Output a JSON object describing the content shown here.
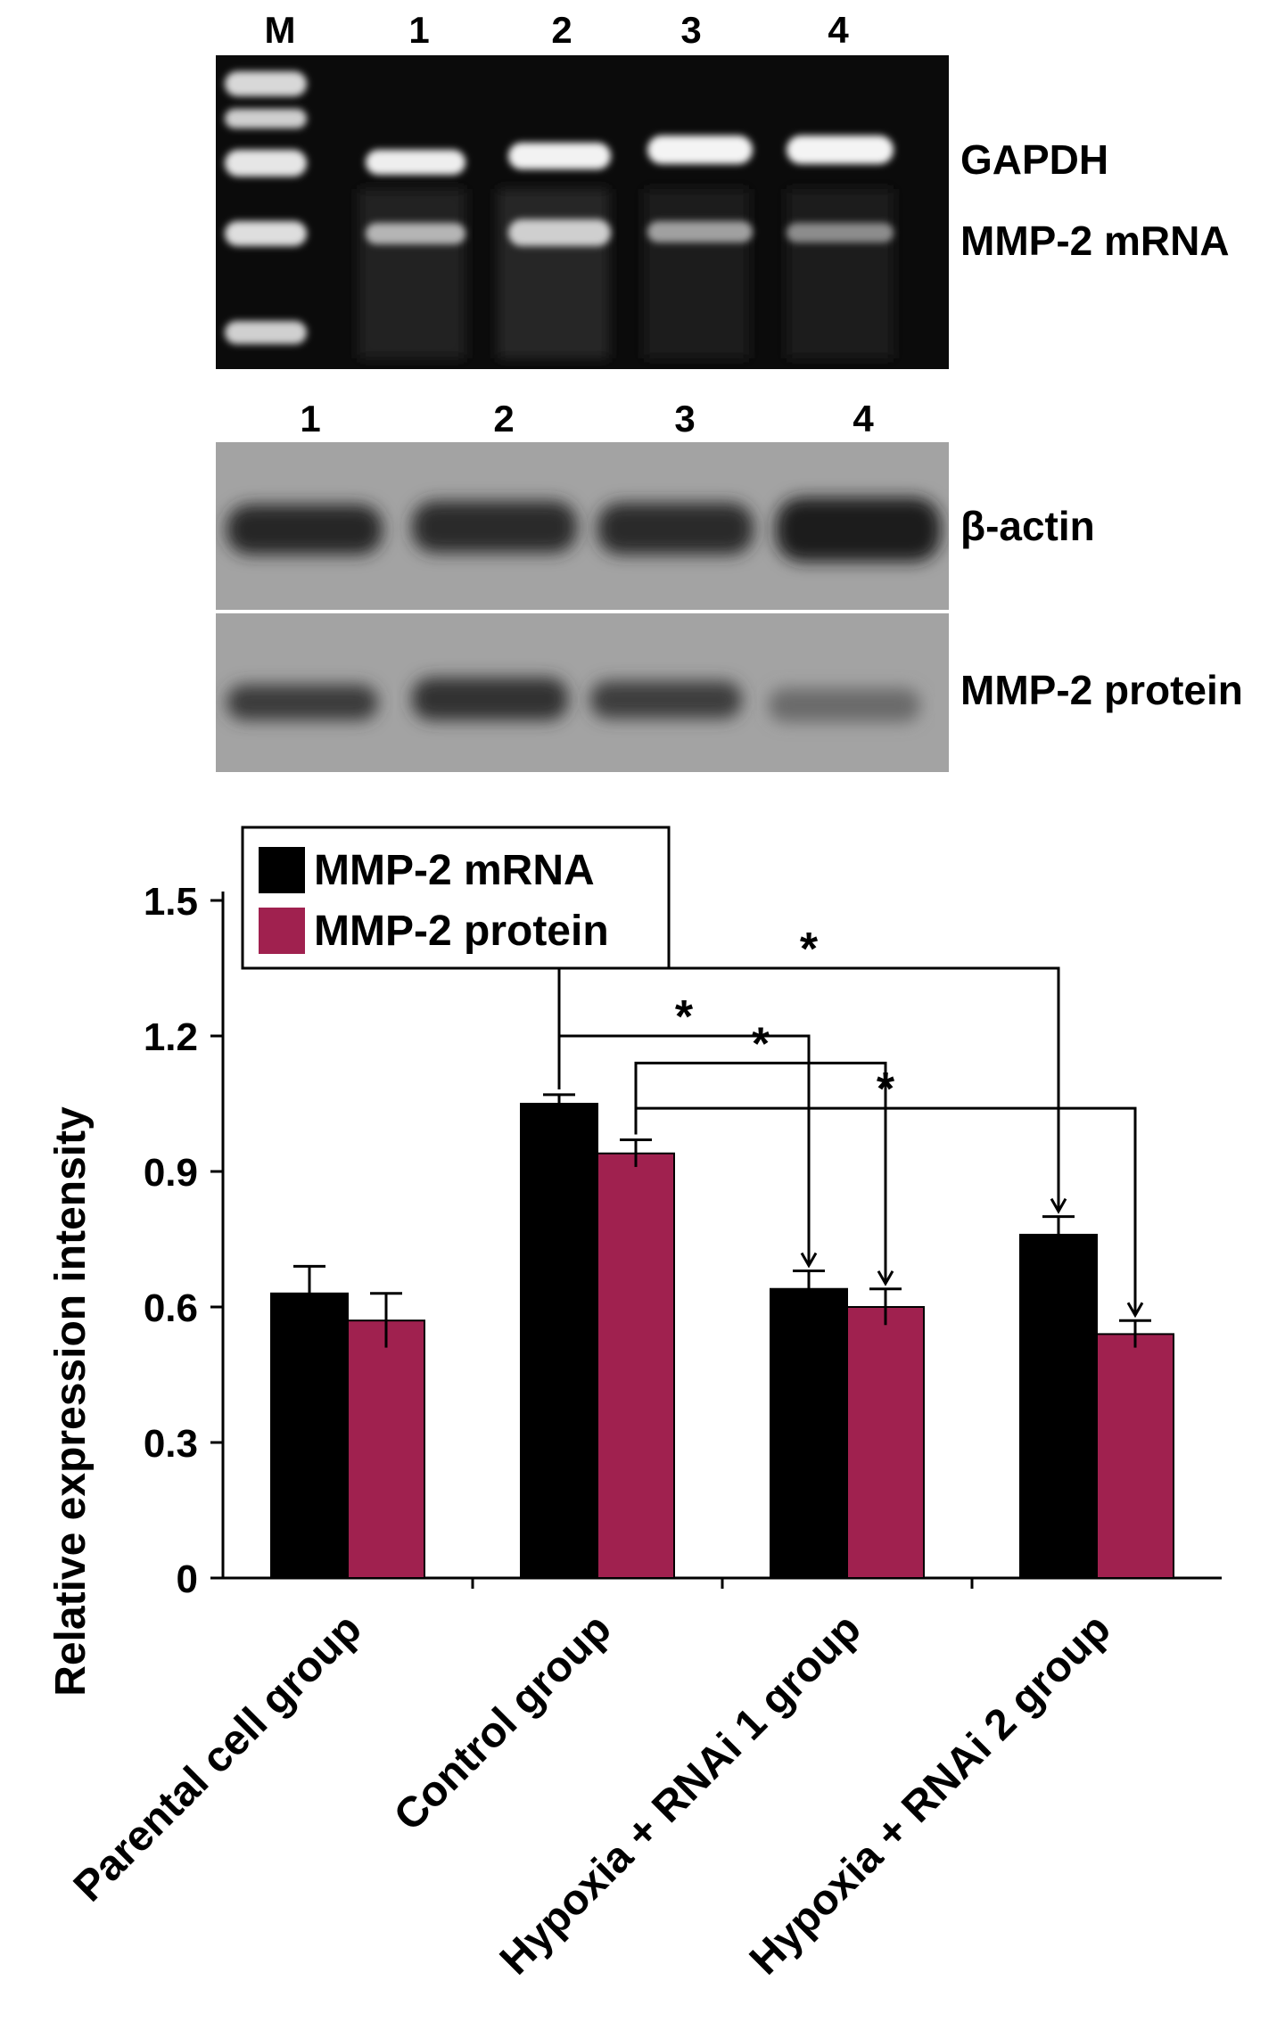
{
  "gel": {
    "lane_labels": [
      "M",
      "1",
      "2",
      "3",
      "4"
    ],
    "band_labels": [
      "GAPDH",
      "MMP-2 mRNA"
    ]
  },
  "blot": {
    "lane_labels": [
      "1",
      "2",
      "3",
      "4"
    ],
    "panel_labels": [
      "β-actin",
      "MMP-2 protein"
    ]
  },
  "colors": {
    "mrna": "#000000",
    "protein": "#a0214f"
  },
  "chart_data": {
    "type": "bar",
    "categories": [
      "Parental cell group",
      "Control group",
      "Hypoxia + RNAi 1 group",
      "Hypoxia + RNAi 2 group"
    ],
    "series": [
      {
        "name": "MMP-2 mRNA",
        "values": [
          0.63,
          1.05,
          0.64,
          0.76
        ],
        "errors": [
          0.06,
          0.02,
          0.04,
          0.04
        ],
        "color": "#000000"
      },
      {
        "name": "MMP-2 protein",
        "values": [
          0.57,
          0.94,
          0.6,
          0.54
        ],
        "errors": [
          0.06,
          0.03,
          0.04,
          0.03
        ],
        "color": "#a0214f"
      }
    ],
    "ylabel": "Relative expression intensity",
    "ylim": [
      0,
      1.5
    ],
    "yticks": [
      "0",
      "0.3",
      "0.6",
      "0.9",
      "1.2",
      "1.5"
    ],
    "legend_position": "top-left",
    "significance": [
      {
        "from_category": 1,
        "from_series": 0,
        "to_category": 2,
        "to_series": 0,
        "label": "*"
      },
      {
        "from_category": 1,
        "from_series": 0,
        "to_category": 3,
        "to_series": 0,
        "label": "*"
      },
      {
        "from_category": 1,
        "from_series": 1,
        "to_category": 2,
        "to_series": 1,
        "label": "*"
      },
      {
        "from_category": 1,
        "from_series": 1,
        "to_category": 3,
        "to_series": 1,
        "label": "*"
      }
    ]
  }
}
